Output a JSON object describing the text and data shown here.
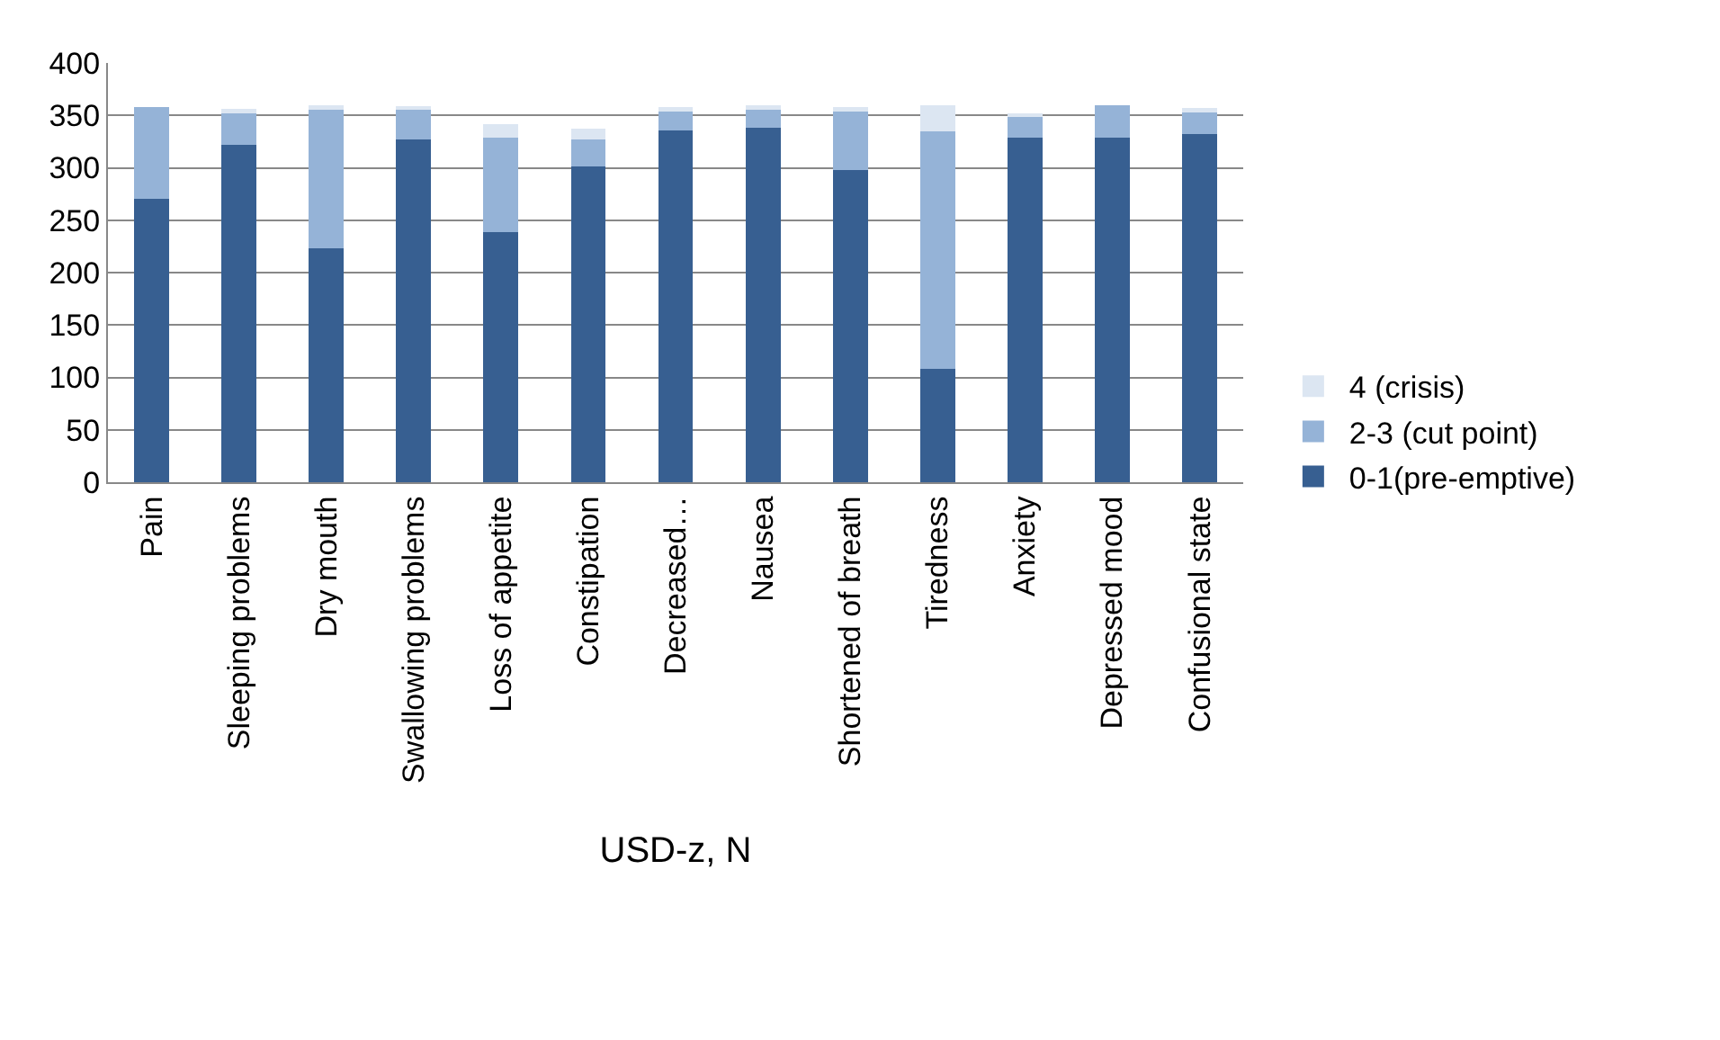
{
  "chart_data": {
    "type": "bar",
    "stacked": true,
    "xlabel": "USD-z, N",
    "categories": [
      "Pain",
      "Sleeping problems",
      "Dry mouth",
      "Swallowing problems",
      "Loss of appetite",
      "Constipation",
      "Decreased…",
      "Nausea",
      "Shortened of breath",
      "Tiredness",
      "Anxiety",
      "Depressed mood",
      "Confusional state"
    ],
    "series": [
      {
        "name": "0-1(pre-emptive)",
        "color": "#375f91",
        "values": [
          270,
          322,
          223,
          327,
          239,
          301,
          336,
          338,
          298,
          108,
          329,
          329,
          332
        ]
      },
      {
        "name": "2-3 (cut point)",
        "color": "#95b3d7",
        "values": [
          88,
          31,
          134,
          30,
          90,
          26,
          19,
          19,
          57,
          227,
          21,
          31,
          21
        ]
      },
      {
        "name": "4 (crisis)",
        "color": "#dce6f2",
        "values": [
          0,
          3,
          3,
          1,
          13,
          10,
          3,
          3,
          3,
          25,
          2,
          0,
          4
        ]
      }
    ],
    "ylim": [
      0,
      400
    ],
    "yticks": [
      0,
      50,
      100,
      150,
      200,
      250,
      300,
      350,
      400
    ],
    "grid": "y",
    "legend": "right"
  }
}
